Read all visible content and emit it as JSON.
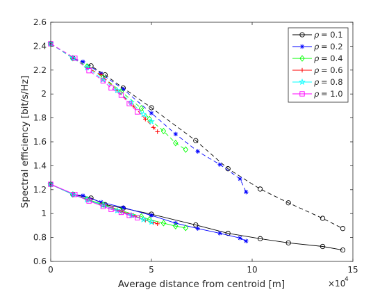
{
  "chart_data": {
    "type": "line",
    "xlabel": "Average distance from centroid [m]",
    "ylabel": "Spectral efficiency [bit/s/Hz]",
    "x_exponent_base": "×10",
    "x_exponent_power": "4",
    "xlim": [
      0,
      150000
    ],
    "ylim": [
      0.6,
      2.6
    ],
    "xticks": [
      0,
      50000,
      100000,
      150000
    ],
    "xtick_labels": [
      "0",
      "5",
      "10",
      "15"
    ],
    "yticks": [
      0.6,
      0.8,
      1.0,
      1.2,
      1.4,
      1.6,
      1.8,
      2.0,
      2.2,
      2.4,
      2.6
    ],
    "ytick_labels": [
      "0.6",
      "0.8",
      "1",
      "1.2",
      "1.4",
      "1.6",
      "1.8",
      "2",
      "2.2",
      "2.4",
      "2.6"
    ],
    "grid": false,
    "legend_position": "top-right",
    "series": [
      {
        "name": "ρ = 0.1",
        "rho_label": "ρ",
        "rho_value": "= 0.1",
        "color": "#000000",
        "marker": "circle",
        "upper_x": [
          0,
          11000,
          20000,
          27000,
          36000,
          50000,
          72000,
          88000,
          104000,
          118000,
          135000,
          145000
        ],
        "upper_y": [
          2.42,
          2.3,
          2.235,
          2.16,
          2.05,
          1.885,
          1.61,
          1.375,
          1.205,
          1.09,
          0.96,
          0.875
        ],
        "lower_x": [
          0,
          11000,
          20000,
          27000,
          36000,
          50000,
          72000,
          88000,
          104000,
          118000,
          135000,
          145000
        ],
        "lower_y": [
          1.245,
          1.16,
          1.13,
          1.075,
          1.045,
          0.995,
          0.905,
          0.835,
          0.79,
          0.755,
          0.725,
          0.695
        ]
      },
      {
        "name": "ρ = 0.2",
        "rho_label": "ρ",
        "rho_value": "= 0.2",
        "color": "#0000ff",
        "marker": "star",
        "upper_x": [
          0,
          11000,
          16000,
          25000,
          36000,
          50000,
          62000,
          73000,
          84000,
          94000,
          97000
        ],
        "upper_y": [
          2.42,
          2.3,
          2.27,
          2.17,
          2.04,
          1.84,
          1.665,
          1.52,
          1.41,
          1.29,
          1.18
        ],
        "lower_x": [
          0,
          11000,
          16000,
          25000,
          36000,
          50000,
          62000,
          73000,
          84000,
          94000,
          97000
        ],
        "lower_y": [
          1.245,
          1.16,
          1.15,
          1.095,
          1.05,
          0.985,
          0.92,
          0.875,
          0.835,
          0.795,
          0.77
        ]
      },
      {
        "name": "ρ = 0.4",
        "rho_label": "ρ",
        "rho_value": "= 0.4",
        "color": "#00ff00",
        "marker": "diamond",
        "upper_x": [
          0,
          11000,
          18000,
          26000,
          35000,
          45000,
          49000,
          56000,
          62000,
          67000
        ],
        "upper_y": [
          2.42,
          2.3,
          2.23,
          2.14,
          2.02,
          1.88,
          1.79,
          1.69,
          1.59,
          1.535
        ],
        "lower_x": [
          0,
          11000,
          18000,
          26000,
          35000,
          45000,
          49000,
          56000,
          62000,
          67000
        ],
        "lower_y": [
          1.245,
          1.16,
          1.12,
          1.075,
          1.025,
          0.975,
          0.95,
          0.92,
          0.895,
          0.88
        ]
      },
      {
        "name": "ρ = 0.6",
        "rho_label": "ρ",
        "rho_value": "= 0.6",
        "color": "#ff0000",
        "marker": "plus",
        "upper_x": [
          0,
          11000,
          18000,
          25000,
          33000,
          41000,
          47000,
          51000,
          53000
        ],
        "upper_y": [
          2.42,
          2.3,
          2.22,
          2.16,
          2.03,
          1.9,
          1.79,
          1.72,
          1.685
        ],
        "lower_x": [
          0,
          11000,
          18000,
          25000,
          33000,
          41000,
          47000,
          51000,
          53000
        ],
        "lower_y": [
          1.245,
          1.16,
          1.115,
          1.075,
          1.03,
          0.985,
          0.945,
          0.925,
          0.915
        ]
      },
      {
        "name": "ρ = 0.8",
        "rho_label": "ρ",
        "rho_value": "= 0.8",
        "color": "#00ffff",
        "marker": "pentagram",
        "upper_x": [
          0,
          11000,
          18000,
          26000,
          33000,
          40000,
          46000,
          50000
        ],
        "upper_y": [
          2.42,
          2.3,
          2.22,
          2.12,
          2.03,
          1.93,
          1.83,
          1.77
        ],
        "lower_x": [
          0,
          11000,
          18000,
          26000,
          33000,
          40000,
          46000,
          50000
        ],
        "lower_y": [
          1.245,
          1.16,
          1.115,
          1.07,
          1.025,
          0.985,
          0.95,
          0.93
        ]
      },
      {
        "name": "ρ = 1.0",
        "rho_label": "ρ",
        "rho_value": "= 1.0",
        "color": "#ff00ff",
        "marker": "square",
        "upper_x": [
          0,
          12000,
          19000,
          26000,
          30000,
          35000,
          39000,
          43000
        ],
        "upper_y": [
          2.42,
          2.3,
          2.195,
          2.11,
          2.05,
          1.99,
          1.92,
          1.85
        ],
        "lower_x": [
          0,
          12000,
          19000,
          26000,
          30000,
          35000,
          39000,
          43000
        ],
        "lower_y": [
          1.245,
          1.16,
          1.105,
          1.06,
          1.035,
          1.01,
          0.985,
          0.965
        ]
      }
    ]
  }
}
